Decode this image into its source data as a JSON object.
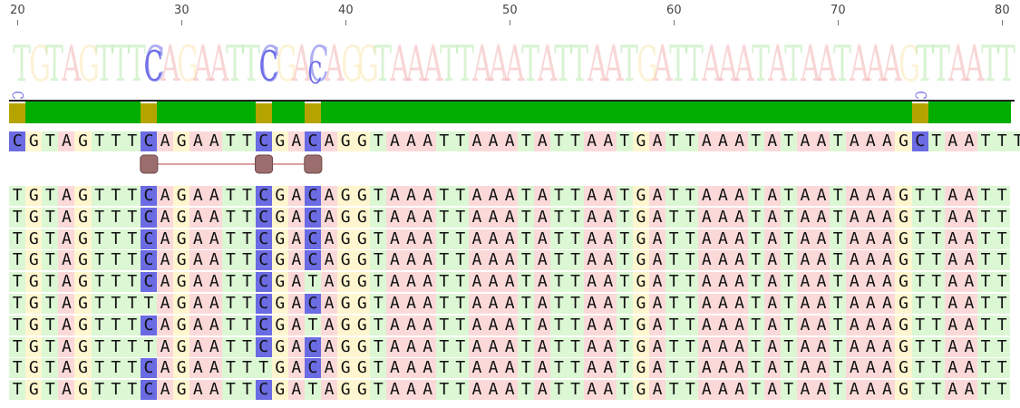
{
  "ruler": {
    "ticks": [
      {
        "pos": 20,
        "label": "20"
      },
      {
        "pos": 30,
        "label": "30"
      },
      {
        "pos": 40,
        "label": "40"
      },
      {
        "pos": 50,
        "label": "50"
      },
      {
        "pos": 60,
        "label": "60"
      },
      {
        "pos": 70,
        "label": "70"
      },
      {
        "pos": 80,
        "label": "80"
      }
    ]
  },
  "colors": {
    "A": "#fbd9d9",
    "T": "#dcf7d4",
    "G": "#fff6cf",
    "C": "#6b6be3",
    "consensus_green": "#00ad00",
    "consensus_olive": "#b5a400",
    "logo_A": "#f4b5b5",
    "logo_T": "#b9ebb0",
    "logo_G": "#fae9b5",
    "logo_C": "#6f6fe8",
    "link_node": "#9c6d6d",
    "link_line": "#b84040"
  },
  "logo": {
    "sequence": "TGTAGTTTCAGAATTCGACAGGTAAATTAAATATTAATGATTAAATATAATAAAGTTAATT",
    "big_c_columns": [
      8,
      15,
      18
    ],
    "small_c_columns": [
      0,
      55
    ]
  },
  "consensus_bar": {
    "olive_columns": [
      0,
      8,
      15,
      18,
      55
    ]
  },
  "reference": {
    "sequence": "CGTAGTTTCAGAATTCGACAGGTAAATTAAATATTAATGATTAAATATAATAAAGCTAATTT"
  },
  "link": {
    "node_columns": [
      8,
      15,
      18
    ]
  },
  "reads": [
    "TGTAGTTTCAGAATTCGACAGGTAAATTAAATATTAATGATTAAATATAATAAAGTTAATT",
    "TGTAGTTTCAGAATTCGACAGGTAAATTAAATATTAATGATTAAATATAATAAAGTTAATT",
    "TGTAGTTTCAGAATTCGACAGGTAAATTAAATATTAATGATTAAATATAATAAAGTTAATT",
    "TGTAGTTTCAGAATTCGACAGGTAAATTAAATATTAATGATTAAATATAATAAAGTTAATT",
    "TGTAGTTTCAGAATTCGATAGGTAAATTAAATATTAATGATTAAATATAATAAAGTTAATT",
    "TGTAGTTTTAGAATTCGACAGGTAAATTAAATATTAATGATTAAATATAATAAAGTTAATT",
    "TGTAGTTTCAGAATTCGATAGGTAAATTAAATATTAATGATTAAATATAATAAAGTTAATT",
    "TGTAGTTTTAGAATTCGACAGGTAAATTAAATATTAATGATTAAATATAATAAAGTTAATT",
    "TGTAGTTTCAGAATTTGACAGGTAAATTAAATATTAATGATTAAATATAATAAAGTTAATT",
    "TGTAGTTTCAGAATTCGATAGGTAAATTAAATATTAATGATTAAATATAATAAAGTTAATT"
  ]
}
